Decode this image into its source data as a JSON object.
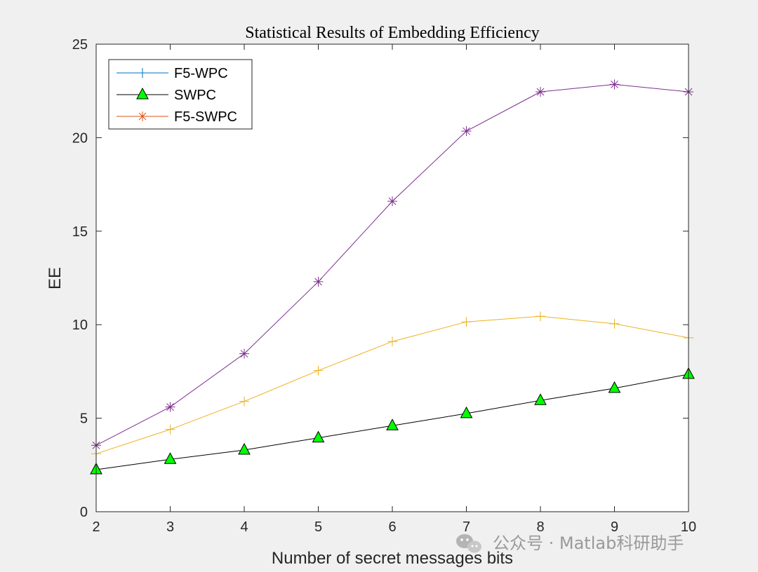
{
  "chart_data": {
    "type": "line",
    "title": "Statistical Results of Embedding Efficiency",
    "xlabel": "Number of secret messages bits",
    "ylabel": "EE",
    "x": [
      2,
      3,
      4,
      5,
      6,
      7,
      8,
      9,
      10
    ],
    "xlim": [
      2,
      10
    ],
    "ylim": [
      0,
      25
    ],
    "xticks": [
      "2",
      "3",
      "4",
      "5",
      "6",
      "7",
      "8",
      "9",
      "10"
    ],
    "yticks": [
      "0",
      "5",
      "10",
      "15",
      "20",
      "25"
    ],
    "grid": false,
    "legend_position": "top-left",
    "series": [
      {
        "name": "F5-WPC",
        "legend_color": "#0072bd",
        "plot_color": "#edb120",
        "marker": "plus",
        "values": [
          3.1,
          4.4,
          5.9,
          7.55,
          9.1,
          10.15,
          10.45,
          10.05,
          9.3
        ]
      },
      {
        "name": "SWPC",
        "legend_color": "#000000",
        "plot_color": "#000000",
        "marker_fill": "#00ff00",
        "marker": "triangle",
        "values": [
          2.25,
          2.8,
          3.3,
          3.95,
          4.6,
          5.25,
          5.95,
          6.6,
          7.35
        ]
      },
      {
        "name": "F5-SWPC",
        "legend_color": "#d95319",
        "plot_color": "#7e2f8e",
        "marker": "star",
        "values": [
          3.55,
          5.6,
          8.45,
          12.3,
          16.6,
          20.35,
          22.45,
          22.85,
          22.45
        ]
      }
    ]
  },
  "watermark": {
    "text": "公众号 · Matlab科研助手",
    "icon": "wechat-icon"
  }
}
